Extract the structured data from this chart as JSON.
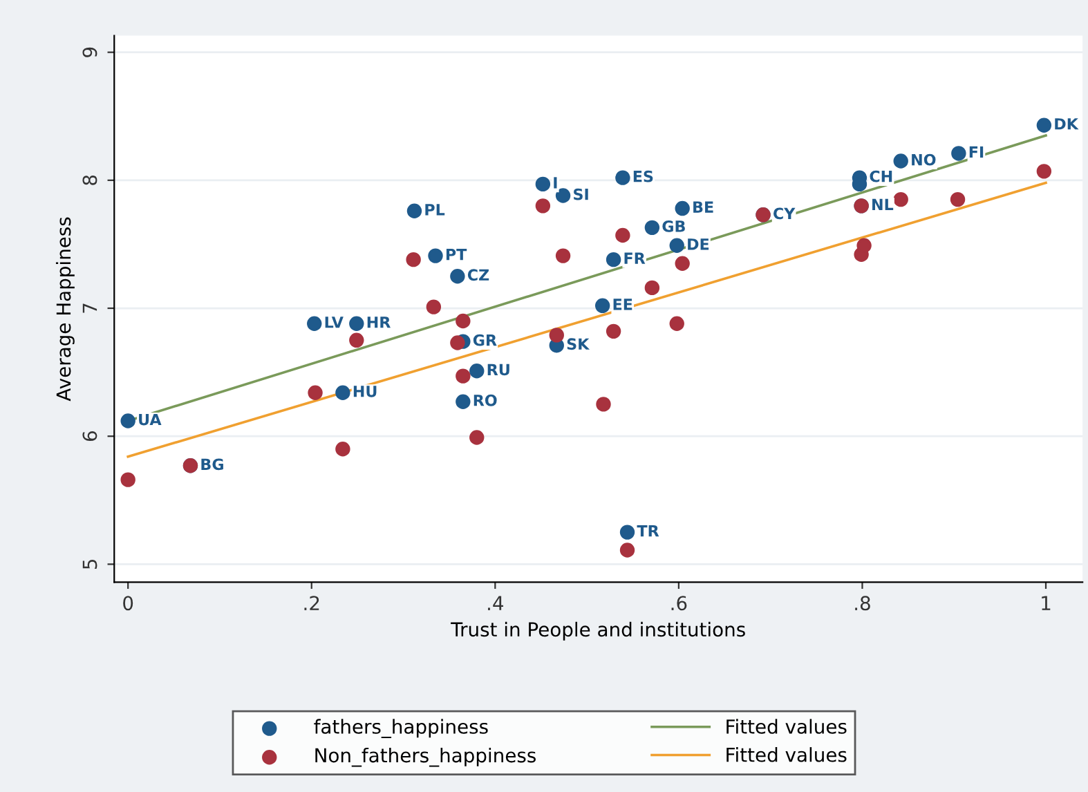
{
  "chart_data": {
    "type": "scatter",
    "xlabel": "Trust in People and institutions",
    "ylabel": "Average Happiness",
    "xlim": [
      -0.015,
      1.04
    ],
    "ylim": [
      4.86,
      9.13
    ],
    "xticks": [
      0,
      {
        "value": 0.2,
        "label": ".2"
      },
      {
        "value": 0.4,
        "label": ".4"
      },
      {
        "value": 0.6,
        "label": ".6"
      },
      {
        "value": 0.8,
        "label": ".8"
      },
      1
    ],
    "yticks": [
      5,
      6,
      7,
      8,
      9
    ],
    "grid": "y",
    "legend": "bottom",
    "marker": "circle",
    "series": [
      {
        "name": "fathers_happiness",
        "color": "#1f5a8c",
        "x": [
          0,
          0.068,
          0.203,
          0.249,
          0.234,
          0.312,
          0.335,
          0.359,
          0.365,
          0.38,
          0.365,
          0.452,
          0.474,
          0.467,
          0.539,
          0.529,
          0.517,
          0.544,
          0.571,
          0.604,
          0.598,
          0.692,
          0.797,
          0.797,
          0.799,
          0.842,
          0.905,
          0.998
        ],
        "values": [
          6.12,
          5.77,
          6.88,
          6.88,
          6.34,
          7.76,
          7.41,
          7.25,
          6.74,
          6.51,
          6.27,
          7.97,
          7.88,
          6.71,
          8.02,
          7.38,
          7.02,
          5.25,
          7.63,
          7.78,
          7.49,
          7.73,
          8.02,
          7.97,
          7.8,
          8.15,
          8.21,
          8.43
        ],
        "value_labels": [
          "UA",
          "BG",
          "LV",
          "HR",
          "HU",
          "PL",
          "PT",
          "CZ",
          "GR",
          "RU",
          "RO",
          "I",
          "SI",
          "SK",
          "ES",
          "FR",
          "EE",
          "TR",
          "GB",
          "BE",
          "DE",
          "CY",
          "CH",
          null,
          "NL",
          "NO",
          "FI",
          "DK"
        ]
      },
      {
        "name": "Non_fathers_happiness",
        "color": "#a8323e",
        "x": [
          0,
          0.068,
          0.204,
          0.234,
          0.249,
          0.311,
          0.333,
          0.359,
          0.365,
          0.365,
          0.38,
          0.452,
          0.467,
          0.474,
          0.518,
          0.529,
          0.539,
          0.544,
          0.571,
          0.598,
          0.604,
          0.692,
          0.799,
          0.799,
          0.802,
          0.842,
          0.904,
          0.998
        ],
        "values": [
          5.66,
          5.77,
          6.34,
          5.9,
          6.75,
          7.38,
          7.01,
          6.73,
          6.9,
          6.47,
          5.99,
          7.8,
          6.79,
          7.41,
          6.25,
          6.82,
          7.57,
          5.11,
          7.16,
          6.88,
          7.35,
          7.73,
          7.8,
          7.42,
          7.49,
          7.85,
          7.85,
          8.07
        ]
      },
      {
        "name": "Fitted values",
        "type": "line",
        "marker": "none",
        "color": "#7a9a5a",
        "x": [
          0,
          1
        ],
        "values": [
          6.12,
          8.35
        ]
      },
      {
        "name": "Fitted values",
        "type": "line",
        "marker": "none",
        "color": "#f0a030",
        "x": [
          0,
          1
        ],
        "values": [
          5.84,
          7.98
        ]
      }
    ]
  }
}
